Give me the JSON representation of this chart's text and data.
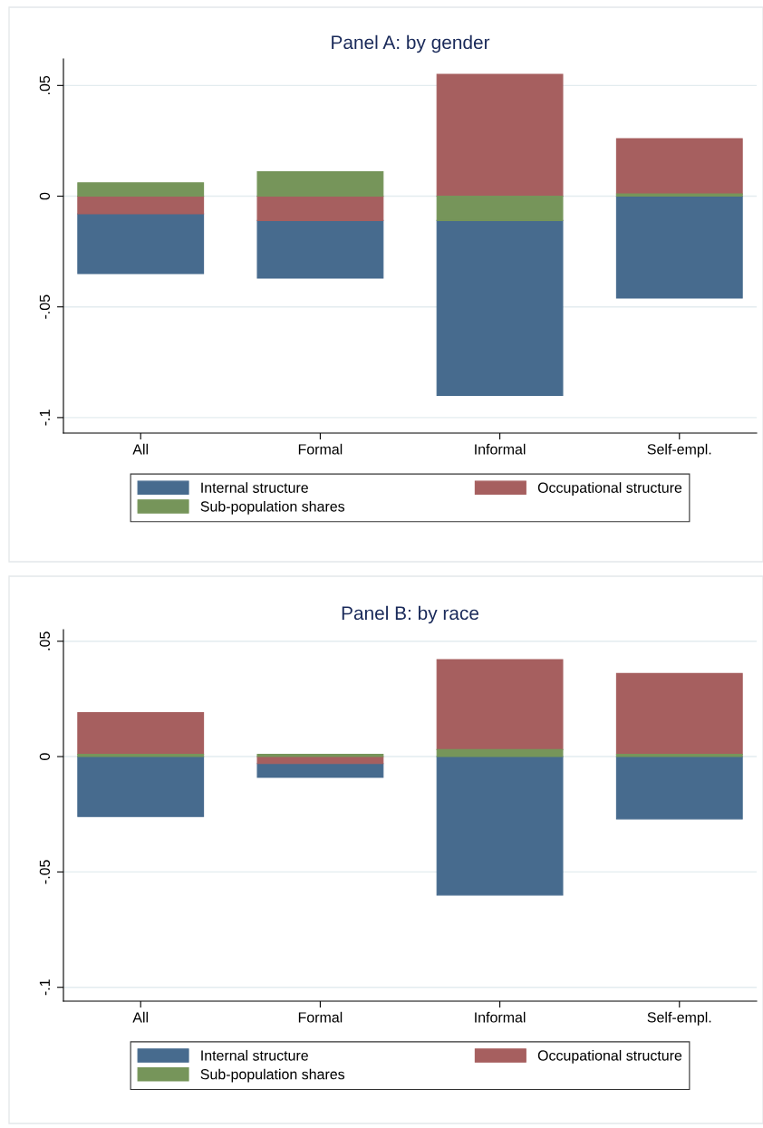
{
  "chart_data": [
    {
      "type": "bar",
      "title": "Panel A: by gender",
      "categories": [
        "All",
        "Formal",
        "Informal",
        "Self-empl."
      ],
      "stacked": true,
      "series": [
        {
          "name": "Sub-population shares",
          "color": "#76955a",
          "values": [
            0.006,
            0.011,
            -0.011,
            0.001
          ]
        },
        {
          "name": "Occupational structure",
          "color": "#a65f5f",
          "values": [
            -0.008,
            -0.011,
            0.055,
            0.025
          ]
        },
        {
          "name": "Internal structure",
          "color": "#476b8e",
          "values": [
            -0.027,
            -0.026,
            -0.079,
            -0.046
          ]
        }
      ],
      "ylim": [
        -0.107,
        0.062
      ],
      "yticks": [
        {
          "value": 0.05,
          "label": ".05"
        },
        {
          "value": 0,
          "label": "0"
        },
        {
          "value": -0.05,
          "label": "-.05"
        },
        {
          "value": -0.1,
          "label": "-.1"
        }
      ],
      "grid": "y",
      "legend": "bottom"
    },
    {
      "type": "bar",
      "title": "Panel B: by race",
      "categories": [
        "All",
        "Formal",
        "Informal",
        "Self-empl."
      ],
      "stacked": true,
      "series": [
        {
          "name": "Sub-population shares",
          "color": "#76955a",
          "values": [
            0.001,
            0.001,
            0.003,
            0.001
          ]
        },
        {
          "name": "Occupational structure",
          "color": "#a65f5f",
          "values": [
            0.018,
            -0.003,
            0.039,
            0.035
          ]
        },
        {
          "name": "Internal structure",
          "color": "#476b8e",
          "values": [
            -0.026,
            -0.006,
            -0.06,
            -0.027
          ]
        }
      ],
      "ylim": [
        -0.106,
        0.055
      ],
      "yticks": [
        {
          "value": 0.05,
          "label": ".05"
        },
        {
          "value": 0,
          "label": "0"
        },
        {
          "value": -0.05,
          "label": "-.05"
        },
        {
          "value": -0.1,
          "label": "-.1"
        }
      ],
      "grid": "y",
      "legend": "bottom"
    }
  ]
}
